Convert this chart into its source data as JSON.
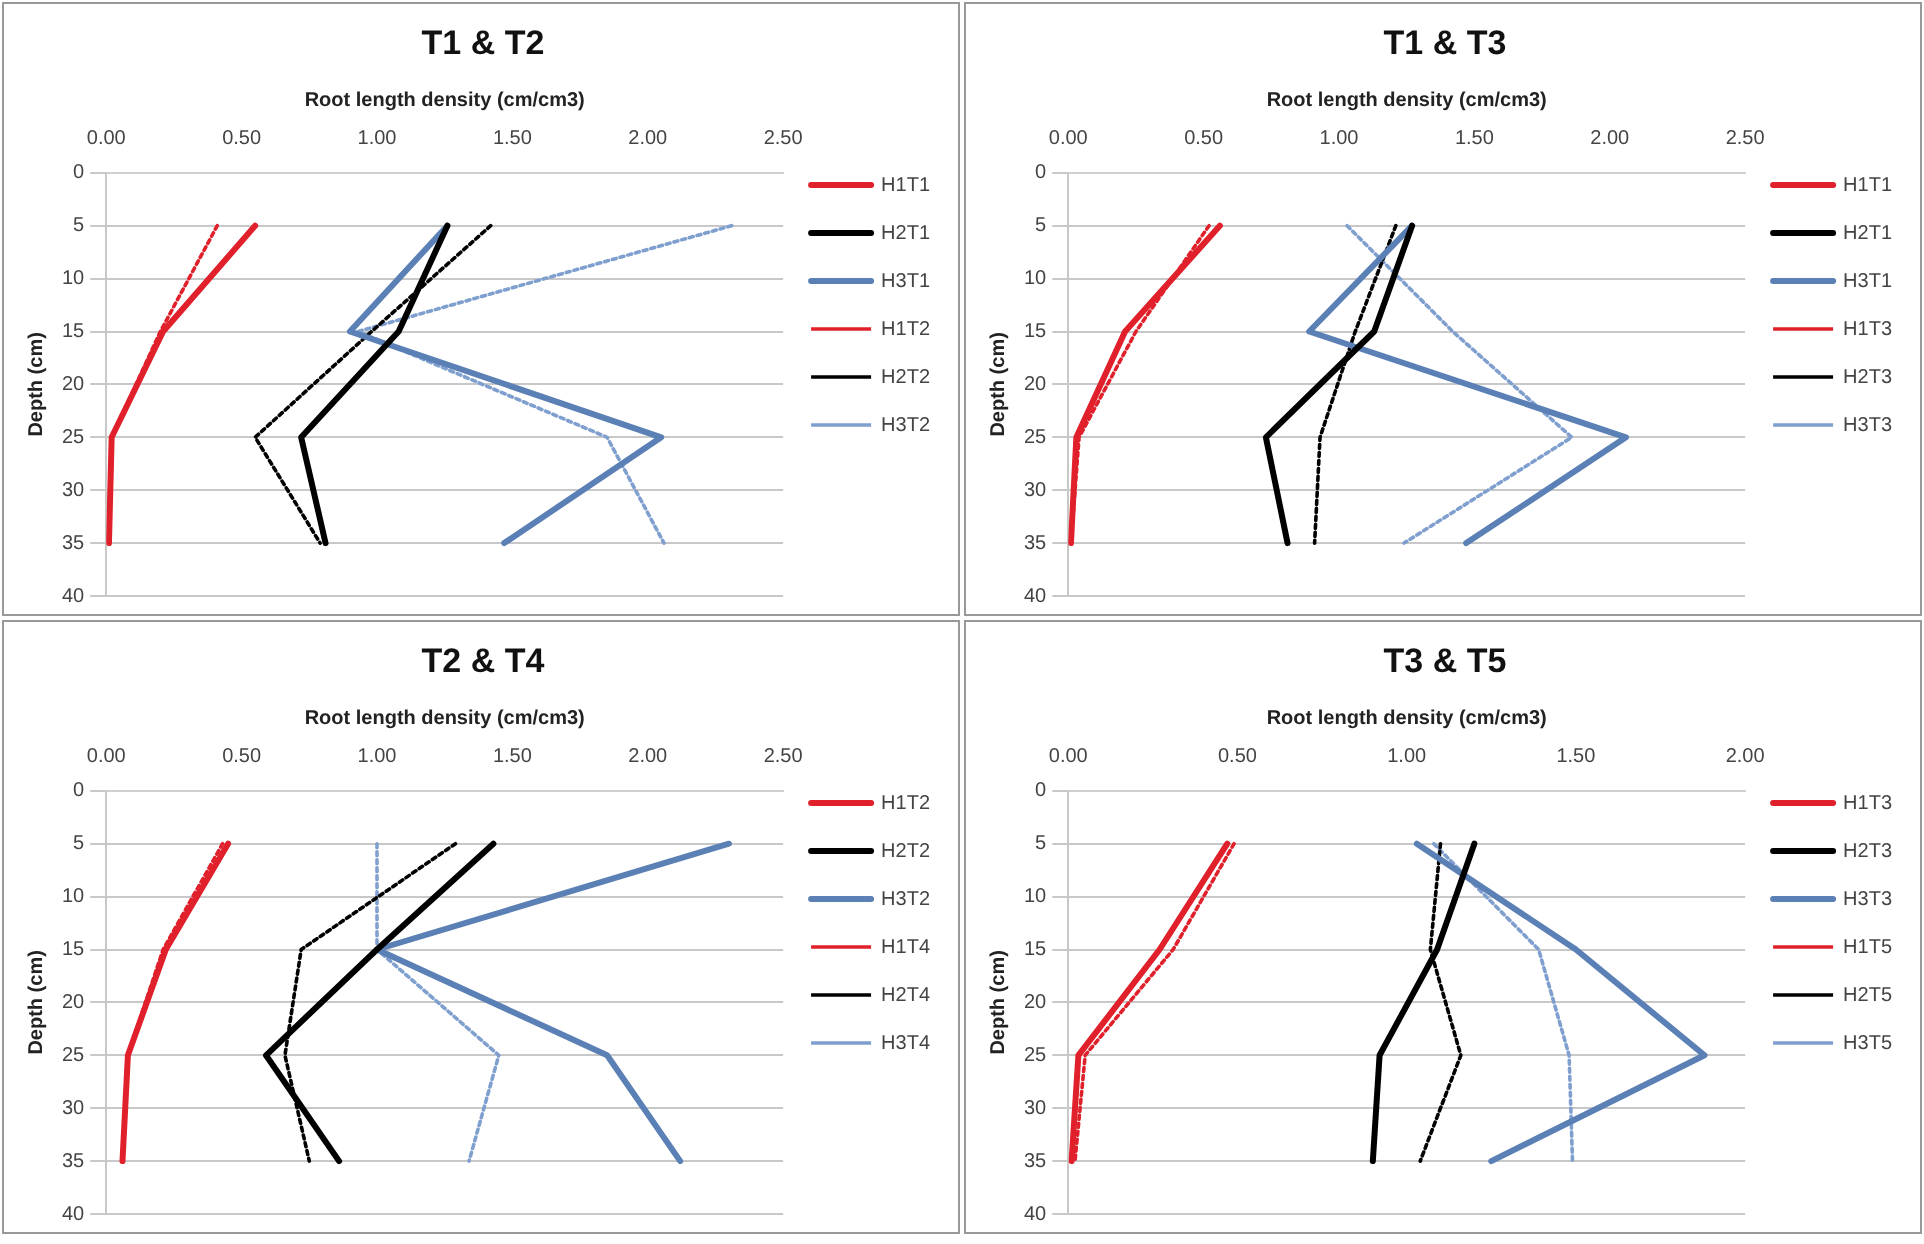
{
  "chart_data": [
    {
      "type": "line",
      "title": "T1 & T2",
      "xlabel": "Root length density (cm/cm3)",
      "ylabel": "Depth (cm)",
      "xlim": [
        0,
        2.5
      ],
      "xticks": [
        {
          "value": 0,
          "label": "0.00"
        },
        {
          "value": 0.5,
          "label": "0.50"
        },
        {
          "value": 1,
          "label": "1.00"
        },
        {
          "value": 1.5,
          "label": "1.50"
        },
        {
          "value": 2,
          "label": "2.00"
        },
        {
          "value": 2.5,
          "label": "2.50"
        }
      ],
      "ylim": [
        40,
        0
      ],
      "yticks": [
        0,
        5,
        10,
        15,
        20,
        25,
        30,
        35,
        40
      ],
      "grid": "y",
      "legend": "right",
      "marker": "none",
      "series": [
        {
          "name": "H1T1",
          "color": "#e0202a",
          "line_style": "solid",
          "x": [
            0.55,
            0.21,
            0.02,
            0.01
          ],
          "values": [
            5,
            15,
            25,
            35
          ]
        },
        {
          "name": "H2T1",
          "color": "#000000",
          "line_style": "solid",
          "x": [
            1.26,
            1.08,
            0.72,
            0.81
          ],
          "values": [
            5,
            15,
            25,
            35
          ]
        },
        {
          "name": "H3T1",
          "color": "#5b80b5",
          "line_style": "solid",
          "x": [
            1.26,
            0.9,
            2.05,
            1.47
          ],
          "values": [
            5,
            15,
            25,
            35
          ]
        },
        {
          "name": "H1T2",
          "color": "#e0202a",
          "line_style": "dotted",
          "x": [
            0.41,
            0.2,
            0.02,
            0.01
          ],
          "values": [
            5,
            15,
            25,
            35
          ]
        },
        {
          "name": "H2T2",
          "color": "#000000",
          "line_style": "dotted",
          "x": [
            1.42,
            0.98,
            0.55,
            0.79
          ],
          "values": [
            5,
            15,
            25,
            35
          ]
        },
        {
          "name": "H3T2",
          "color": "#7f9fcf",
          "line_style": "dotted",
          "x": [
            2.31,
            0.93,
            1.85,
            2.06
          ],
          "values": [
            5,
            15,
            25,
            35
          ]
        }
      ]
    },
    {
      "type": "line",
      "title": "T1 & T3",
      "xlabel": "Root length density (cm/cm3)",
      "ylabel": "Depth (cm)",
      "xlim": [
        0,
        2.5
      ],
      "xticks": [
        {
          "value": 0,
          "label": "0.00"
        },
        {
          "value": 0.5,
          "label": "0.50"
        },
        {
          "value": 1,
          "label": "1.00"
        },
        {
          "value": 1.5,
          "label": "1.50"
        },
        {
          "value": 2,
          "label": "2.00"
        },
        {
          "value": 2.5,
          "label": "2.50"
        }
      ],
      "ylim": [
        40,
        0
      ],
      "yticks": [
        0,
        5,
        10,
        15,
        20,
        25,
        30,
        35,
        40
      ],
      "grid": "y",
      "legend": "right",
      "marker": "none",
      "series": [
        {
          "name": "H1T1",
          "color": "#e0202a",
          "line_style": "solid",
          "x": [
            0.56,
            0.21,
            0.03,
            0.01
          ],
          "values": [
            5,
            15,
            25,
            35
          ]
        },
        {
          "name": "H2T1",
          "color": "#000000",
          "line_style": "solid",
          "x": [
            1.27,
            1.13,
            0.73,
            0.81
          ],
          "values": [
            5,
            15,
            25,
            35
          ]
        },
        {
          "name": "H3T1",
          "color": "#5b80b5",
          "line_style": "solid",
          "x": [
            1.27,
            0.89,
            2.06,
            1.47
          ],
          "values": [
            5,
            15,
            25,
            35
          ]
        },
        {
          "name": "H1T3",
          "color": "#e0202a",
          "line_style": "dotted",
          "x": [
            0.52,
            0.25,
            0.04,
            0.01
          ],
          "values": [
            5,
            15,
            25,
            35
          ]
        },
        {
          "name": "H2T3",
          "color": "#000000",
          "line_style": "dotted",
          "x": [
            1.21,
            1.06,
            0.93,
            0.91
          ],
          "values": [
            5,
            15,
            25,
            35
          ]
        },
        {
          "name": "H3T3",
          "color": "#7f9fcf",
          "line_style": "dotted",
          "x": [
            1.03,
            1.42,
            1.86,
            1.24
          ],
          "values": [
            5,
            15,
            25,
            35
          ]
        }
      ]
    },
    {
      "type": "line",
      "title": "T2 & T4",
      "xlabel": "Root length density (cm/cm3)",
      "ylabel": "Depth (cm)",
      "xlim": [
        0,
        2.5
      ],
      "xticks": [
        {
          "value": 0,
          "label": "0.00"
        },
        {
          "value": 0.5,
          "label": "0.50"
        },
        {
          "value": 1,
          "label": "1.00"
        },
        {
          "value": 1.5,
          "label": "1.50"
        },
        {
          "value": 2,
          "label": "2.00"
        },
        {
          "value": 2.5,
          "label": "2.50"
        }
      ],
      "ylim": [
        40,
        0
      ],
      "yticks": [
        0,
        5,
        10,
        15,
        20,
        25,
        30,
        35,
        40
      ],
      "grid": "y",
      "legend": "right",
      "marker": "none",
      "series": [
        {
          "name": "H1T2",
          "color": "#e0202a",
          "line_style": "solid",
          "x": [
            0.45,
            0.22,
            0.08,
            0.06
          ],
          "values": [
            5,
            15,
            25,
            35
          ]
        },
        {
          "name": "H2T2",
          "color": "#000000",
          "line_style": "solid",
          "x": [
            1.43,
            1.0,
            0.59,
            0.86
          ],
          "values": [
            5,
            15,
            25,
            35
          ]
        },
        {
          "name": "H3T2",
          "color": "#5b80b5",
          "line_style": "solid",
          "x": [
            2.3,
            1.0,
            1.85,
            2.12
          ],
          "values": [
            5,
            15,
            25,
            35
          ]
        },
        {
          "name": "H1T4",
          "color": "#e0202a",
          "line_style": "dotted",
          "x": [
            0.43,
            0.21,
            0.08,
            0.06
          ],
          "values": [
            5,
            15,
            25,
            35
          ]
        },
        {
          "name": "H2T4",
          "color": "#000000",
          "line_style": "dotted",
          "x": [
            1.29,
            0.72,
            0.66,
            0.75
          ],
          "values": [
            5,
            15,
            25,
            35
          ]
        },
        {
          "name": "H3T4",
          "color": "#7f9fcf",
          "line_style": "dotted",
          "x": [
            1.0,
            1.0,
            1.45,
            1.34
          ],
          "values": [
            5,
            15,
            25,
            35
          ]
        }
      ]
    },
    {
      "type": "line",
      "title": "T3 & T5",
      "xlabel": "Root length density (cm/cm3)",
      "ylabel": "Depth (cm)",
      "xlim": [
        0,
        2
      ],
      "xticks": [
        {
          "value": 0,
          "label": "0.00"
        },
        {
          "value": 0.5,
          "label": "0.50"
        },
        {
          "value": 1,
          "label": "1.00"
        },
        {
          "value": 1.5,
          "label": "1.50"
        },
        {
          "value": 2,
          "label": "2.00"
        }
      ],
      "ylim": [
        40,
        0
      ],
      "yticks": [
        0,
        5,
        10,
        15,
        20,
        25,
        30,
        35,
        40
      ],
      "grid": "y",
      "legend": "right",
      "marker": "none",
      "series": [
        {
          "name": "H1T3",
          "color": "#e0202a",
          "line_style": "solid",
          "x": [
            0.47,
            0.27,
            0.03,
            0.01
          ],
          "values": [
            5,
            15,
            25,
            35
          ]
        },
        {
          "name": "H2T3",
          "color": "#000000",
          "line_style": "solid",
          "x": [
            1.2,
            1.09,
            0.92,
            0.9
          ],
          "values": [
            5,
            15,
            25,
            35
          ]
        },
        {
          "name": "H3T3",
          "color": "#5b80b5",
          "line_style": "solid",
          "x": [
            1.03,
            1.5,
            1.88,
            1.25
          ],
          "values": [
            5,
            15,
            25,
            35
          ]
        },
        {
          "name": "H1T5",
          "color": "#e0202a",
          "line_style": "dotted",
          "x": [
            0.49,
            0.31,
            0.05,
            0.02
          ],
          "values": [
            5,
            15,
            25,
            35
          ]
        },
        {
          "name": "H2T5",
          "color": "#000000",
          "line_style": "dotted",
          "x": [
            1.1,
            1.07,
            1.16,
            1.04
          ],
          "values": [
            5,
            15,
            25,
            35
          ]
        },
        {
          "name": "H3T5",
          "color": "#7f9fcf",
          "line_style": "dotted",
          "x": [
            1.08,
            1.39,
            1.48,
            1.49
          ],
          "values": [
            5,
            15,
            25,
            35
          ]
        }
      ]
    }
  ]
}
